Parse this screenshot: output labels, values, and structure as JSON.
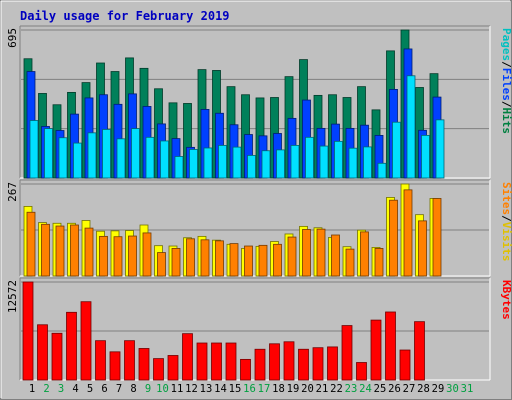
{
  "chart_data": {
    "type": "bar",
    "title": "Daily usage for February 2019",
    "days": [
      "1",
      "2",
      "3",
      "4",
      "5",
      "6",
      "7",
      "8",
      "9",
      "10",
      "11",
      "12",
      "13",
      "14",
      "15",
      "16",
      "17",
      "18",
      "19",
      "20",
      "21",
      "22",
      "23",
      "24",
      "25",
      "26",
      "27",
      "28",
      "29",
      "30",
      "31"
    ],
    "weekend_days": [
      "2",
      "3",
      "9",
      "10",
      "16",
      "17",
      "23",
      "24",
      "30",
      "31"
    ],
    "panels": [
      {
        "id": "hits",
        "max_label": "695",
        "max": 695,
        "labels": [
          {
            "text": "Pages",
            "color": "#00c0c0"
          },
          {
            "text": "/",
            "color": "#000000"
          },
          {
            "text": "Files",
            "color": "#0040ff"
          },
          {
            "text": "/",
            "color": "#000000"
          },
          {
            "text": "Hits",
            "color": "#008040"
          }
        ],
        "series": [
          {
            "key": "hits",
            "color": "#00805a",
            "values": [
              560,
              397,
              344,
              402,
              448,
              540,
              500,
              564,
              515,
              419,
              353,
              350,
              509,
              505,
              429,
              391,
              376,
              378,
              476,
              556,
              388,
              391,
              378,
              429,
              320,
              597,
              695,
              425,
              490
            ]
          },
          {
            "key": "files",
            "color": "#0040ff",
            "values": [
              500,
              242,
              223,
              300,
              376,
              391,
              346,
              395,
              336,
              254,
              185,
              144,
              322,
              304,
              250,
              204,
              198,
              209,
              280,
              366,
              233,
              253,
              233,
              248,
              200,
              416,
              606,
              224,
              380
            ]
          },
          {
            "key": "pages",
            "color": "#00e0ff",
            "values": [
              270,
              232,
              189,
              164,
              212,
              228,
              184,
              232,
              191,
              174,
              101,
              134,
              141,
              153,
              145,
              106,
              128,
              132,
              153,
              191,
              150,
              172,
              140,
              146,
              69,
              262,
              480,
              200,
              273
            ]
          }
        ]
      },
      {
        "id": "visits",
        "max_label": "267",
        "max": 267,
        "labels": [
          {
            "text": "Sites",
            "color": "#ff8000"
          },
          {
            "text": "/",
            "color": "#000000"
          },
          {
            "text": "Visits",
            "color": "#e0c000"
          }
        ],
        "series": [
          {
            "key": "visits",
            "color": "#ffff00",
            "values": [
              202,
              155,
              153,
              153,
              161,
              130,
              131,
              132,
              148,
              88,
              87,
              111,
              115,
              104,
              92,
              80,
              86,
              100,
              122,
              144,
              140,
              112,
              85,
              133,
              83,
              228,
              267,
              178,
              225
            ]
          },
          {
            "key": "sites",
            "color": "#ff8000",
            "values": [
              185,
              150,
              145,
              148,
              139,
              115,
              114,
              116,
              125,
              68,
              80,
              108,
              105,
              102,
              94,
              87,
              89,
              92,
              113,
              135,
              136,
              119,
              78,
              128,
              80,
              220,
              250,
              160,
              225
            ]
          }
        ]
      },
      {
        "id": "kbytes",
        "max_label": "12572",
        "max": 12572,
        "labels": [
          {
            "text": "KBytes",
            "color": "#ff0000"
          }
        ],
        "series": [
          {
            "key": "kbytes",
            "color": "#ff0000",
            "values": [
              12572,
              7085,
              5995,
              8685,
              10045,
              5045,
              3615,
              5045,
              4045,
              2745,
              3145,
              5945,
              4745,
              4745,
              4745,
              2645,
              3945,
              4645,
              4905,
              3945,
              4145,
              4245,
              6985,
              2245,
              7685,
              8725,
              3845,
              7485
            ]
          }
        ]
      }
    ]
  }
}
